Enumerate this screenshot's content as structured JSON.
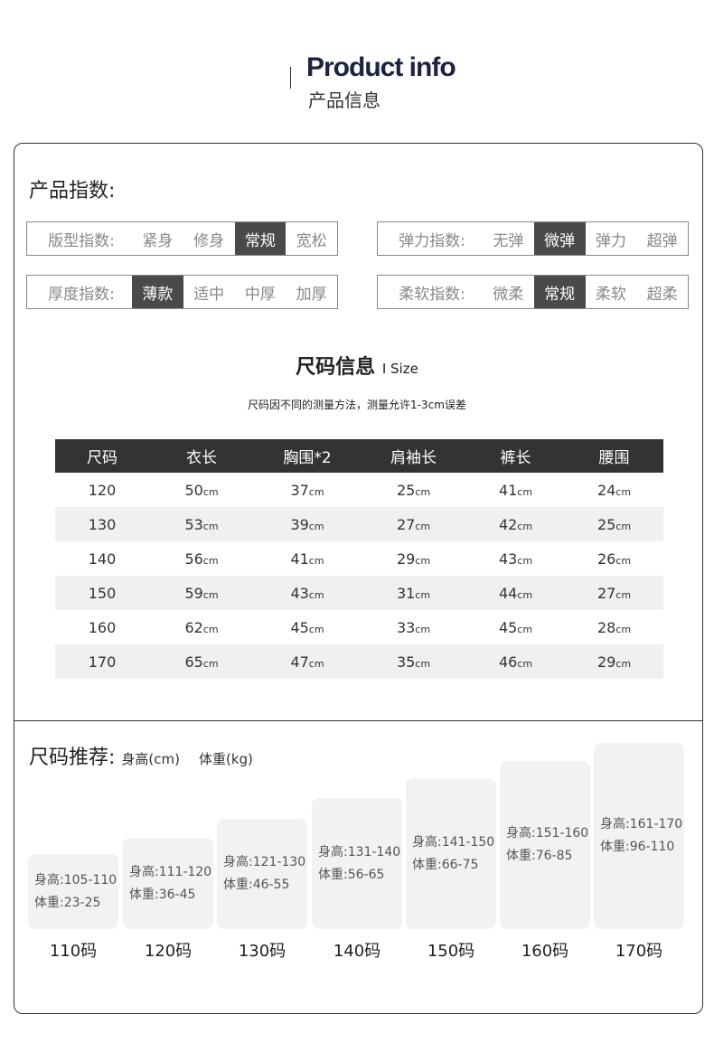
{
  "header": {
    "title": "Product info",
    "subtitle": "产品信息"
  },
  "index": {
    "title": "产品指数:",
    "groups": [
      {
        "label": "版型指数:",
        "options": [
          "紧身",
          "修身",
          "常规",
          "宽松"
        ],
        "selected": "常规"
      },
      {
        "label": "弹力指数:",
        "options": [
          "无弹",
          "微弹",
          "弹力",
          "超弹"
        ],
        "selected": "微弹"
      },
      {
        "label": "厚度指数:",
        "options": [
          "薄款",
          "适中",
          "中厚",
          "加厚"
        ],
        "selected": "薄款"
      },
      {
        "label": "柔软指数:",
        "options": [
          "微柔",
          "常规",
          "柔软",
          "超柔"
        ],
        "selected": "常规"
      }
    ]
  },
  "size": {
    "title": "尺码信息",
    "title_en": "I Size",
    "note": "尺码因不同的测量方法，测量允许1-3cm误差",
    "unit": "cm",
    "columns": [
      "尺码",
      "衣长",
      "胸围*2",
      "肩袖长",
      "裤长",
      "腰围"
    ],
    "rows": [
      [
        "120",
        "50",
        "37",
        "25",
        "41",
        "24"
      ],
      [
        "130",
        "53",
        "39",
        "27",
        "42",
        "25"
      ],
      [
        "140",
        "56",
        "41",
        "29",
        "43",
        "26"
      ],
      [
        "150",
        "59",
        "43",
        "31",
        "44",
        "27"
      ],
      [
        "160",
        "62",
        "45",
        "33",
        "45",
        "28"
      ],
      [
        "170",
        "65",
        "47",
        "35",
        "46",
        "29"
      ]
    ]
  },
  "recommend": {
    "title": "尺码推荐:",
    "height_unit": "身高(cm)",
    "weight_unit": "体重(kg)",
    "items": [
      {
        "height": "身高:105-110",
        "weight": "体重:23-25",
        "label": "110码"
      },
      {
        "height": "身高:111-120",
        "weight": "体重:36-45",
        "label": "120码"
      },
      {
        "height": "身高:121-130",
        "weight": "体重:46-55",
        "label": "130码"
      },
      {
        "height": "身高:131-140",
        "weight": "体重:56-65",
        "label": "140码"
      },
      {
        "height": "身高:141-150",
        "weight": "体重:66-75",
        "label": "150码"
      },
      {
        "height": "身高:151-160",
        "weight": "体重:76-85",
        "label": "160码"
      },
      {
        "height": "身高:161-170",
        "weight": "体重:96-110",
        "label": "170码"
      }
    ]
  }
}
